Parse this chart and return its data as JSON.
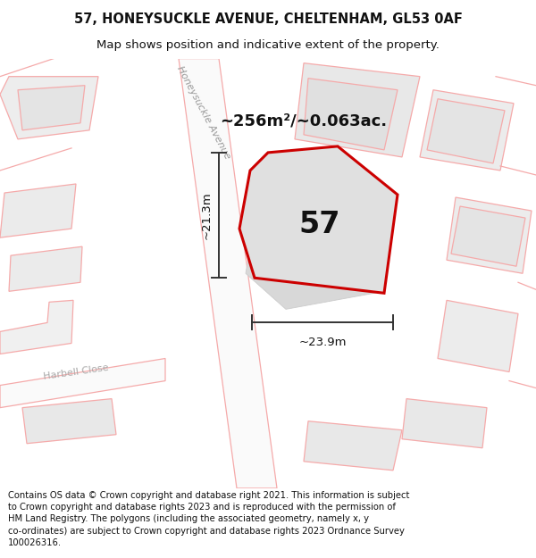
{
  "title_line1": "57, HONEYSUCKLE AVENUE, CHELTENHAM, GL53 0AF",
  "title_line2": "Map shows position and indicative extent of the property.",
  "footer_text": "Contains OS data © Crown copyright and database right 2021. This information is subject\nto Crown copyright and database rights 2023 and is reproduced with the permission of\nHM Land Registry. The polygons (including the associated geometry, namely x, y\nco-ordinates) are subject to Crown copyright and database rights 2023 Ordnance Survey\n100026316.",
  "area_label": "~256m²/~0.063ac.",
  "property_number": "57",
  "dim_height": "~21.3m",
  "dim_width": "~23.9m",
  "street_label": "Honeysuckle Avenue",
  "street_label2": "Harbell Close",
  "background_color": "#ffffff",
  "map_bg_color": "#f2f2f2",
  "plot_outline_color": "#cc0000",
  "plot_fill_color": "#e5e5e5",
  "light_line_color": "#f5aaaa",
  "measure_line_color": "#333333",
  "title_fontsize": 10.5,
  "subtitle_fontsize": 9.5,
  "footer_fontsize": 7.2,
  "label_fontsize": 13,
  "number_fontsize": 24,
  "street_fontsize": 8,
  "dim_fontsize": 9.5
}
